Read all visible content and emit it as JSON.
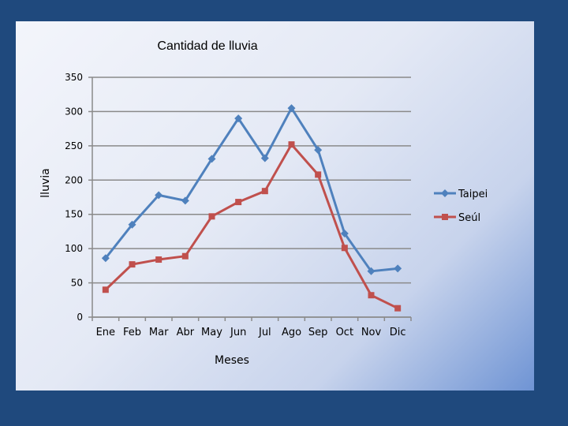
{
  "chart_data": {
    "type": "line",
    "title": "Cantidad de lluvia",
    "xlabel": "Meses",
    "ylabel": "lluvia",
    "categories": [
      "Ene",
      "Feb",
      "Mar",
      "Abr",
      "May",
      "Jun",
      "Jul",
      "Ago",
      "Sep",
      "Oct",
      "Nov",
      "Dic"
    ],
    "series": [
      {
        "name": "Taipei",
        "color": "#4f81bd",
        "marker": "diamond",
        "values": [
          86,
          135,
          178,
          170,
          231,
          290,
          232,
          305,
          244,
          122,
          67,
          71
        ]
      },
      {
        "name": "Seúl",
        "color": "#c0504d",
        "marker": "square",
        "values": [
          40,
          77,
          84,
          89,
          147,
          168,
          184,
          252,
          208,
          101,
          32,
          13
        ]
      }
    ],
    "ylim": [
      0,
      350
    ],
    "yticks": [
      0,
      50,
      100,
      150,
      200,
      250,
      300,
      350
    ],
    "grid": true,
    "legend": "right"
  }
}
